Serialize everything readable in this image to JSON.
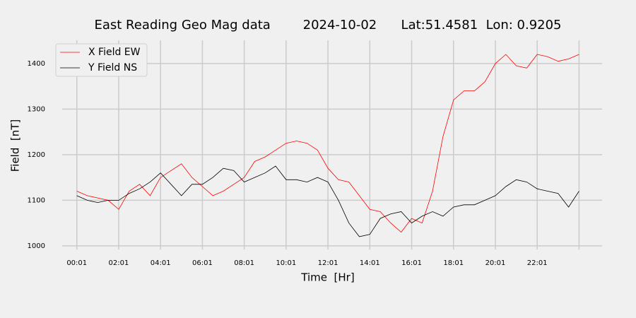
{
  "chart_data": {
    "type": "line",
    "title": "East Reading Geo Mag data        2024-10-02      Lat:51.4581  Lon: 0.9205",
    "xlabel": "Time  [Hr]",
    "ylabel": "Field  [nT]",
    "x": [
      0,
      0.5,
      1,
      1.5,
      2,
      2.5,
      3,
      3.5,
      4,
      4.5,
      5,
      5.5,
      6,
      6.5,
      7,
      7.5,
      8,
      8.5,
      9,
      9.5,
      10,
      10.5,
      11,
      11.5,
      12,
      12.5,
      13,
      13.5,
      14,
      14.5,
      15,
      15.5,
      16,
      16.5,
      17,
      17.5,
      18,
      18.5,
      19,
      19.5,
      20,
      20.5,
      21,
      21.5,
      22,
      22.5,
      23,
      23.5,
      24
    ],
    "series": [
      {
        "name": "X Field EW",
        "color": "#ff0000",
        "values": [
          1120,
          1110,
          1105,
          1100,
          1080,
          1120,
          1135,
          1110,
          1150,
          1165,
          1180,
          1150,
          1130,
          1110,
          1120,
          1135,
          1150,
          1185,
          1195,
          1210,
          1225,
          1230,
          1225,
          1210,
          1170,
          1145,
          1140,
          1110,
          1080,
          1075,
          1050,
          1030,
          1060,
          1050,
          1120,
          1240,
          1320,
          1340,
          1340,
          1360,
          1400,
          1420,
          1395,
          1390,
          1420,
          1415,
          1405,
          1410,
          1420
        ]
      },
      {
        "name": "Y Field NS",
        "color": "#000000",
        "values": [
          1110,
          1100,
          1095,
          1100,
          1100,
          1115,
          1125,
          1140,
          1160,
          1135,
          1110,
          1135,
          1135,
          1150,
          1170,
          1165,
          1140,
          1150,
          1160,
          1175,
          1145,
          1145,
          1140,
          1150,
          1140,
          1100,
          1050,
          1020,
          1025,
          1060,
          1070,
          1075,
          1050,
          1065,
          1075,
          1065,
          1085,
          1090,
          1090,
          1100,
          1110,
          1130,
          1145,
          1140,
          1125,
          1120,
          1115,
          1085,
          1120
        ]
      }
    ],
    "xlim": [
      -0.7,
      25.1
    ],
    "xticks": [
      {
        "value": 0,
        "label": "00:01"
      },
      {
        "value": 2,
        "label": "02:01"
      },
      {
        "value": 4,
        "label": "04:01"
      },
      {
        "value": 6,
        "label": "06:01"
      },
      {
        "value": 8,
        "label": "08:01"
      },
      {
        "value": 10,
        "label": "10:01"
      },
      {
        "value": 12,
        "label": "12:01"
      },
      {
        "value": 14,
        "label": "14:01"
      },
      {
        "value": 16,
        "label": "16:01"
      },
      {
        "value": 18,
        "label": "18:01"
      },
      {
        "value": 20,
        "label": "20:01"
      },
      {
        "value": 22,
        "label": "22:01"
      },
      {
        "value": 24,
        "label": null
      }
    ],
    "ylim": [
      992,
      1451
    ],
    "yticks": [
      1000,
      1100,
      1200,
      1300,
      1400
    ],
    "grid": true,
    "legend": "upper left"
  }
}
